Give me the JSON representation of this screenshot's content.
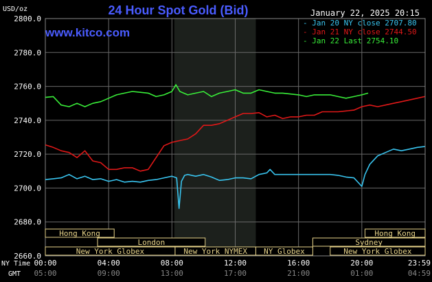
{
  "chart_data": {
    "type": "line",
    "title": "24 Hour Spot Gold (Bid)",
    "ylabel": "USD/oz",
    "source": "www.kitco.com",
    "timestamp": "January 22, 2025 20:15",
    "ylim": [
      2660,
      2800
    ],
    "y_ticks": [
      "2800.0",
      "2780.0",
      "2760.0",
      "2740.0",
      "2720.0",
      "2700.0",
      "2680.0",
      "2660.0"
    ],
    "x_ticks": [
      "00:00",
      "04:00",
      "08:00",
      "12:00",
      "16:00",
      "20:00",
      "23:59"
    ],
    "x_ticks_gmt": [
      "05:00",
      "09:00",
      "13:00",
      "17:00",
      "21:00",
      "01:00",
      "04:59"
    ],
    "x_label_ny": "NY Time",
    "x_label_gmt": "GMT",
    "legend_placement": "top-right",
    "grid": true,
    "highlight_session": {
      "start_hour": 8.15,
      "end_hour": 13.3
    },
    "series": [
      {
        "name": "Jan 20 NY close",
        "value_label": "2707.80",
        "color": "#39c5f0",
        "x": [
          0,
          0.5,
          1,
          1.5,
          2,
          2.5,
          3,
          3.5,
          4,
          4.5,
          5,
          5.5,
          6,
          6.5,
          7,
          7.5,
          8,
          8.3,
          8.45,
          8.6,
          8.8,
          9,
          9.5,
          10,
          10.5,
          11,
          11.5,
          12,
          12.5,
          13,
          13.5,
          14,
          14.2,
          14.5,
          15,
          16,
          17,
          18,
          18.5,
          19,
          19.5,
          20,
          20.1,
          20.2,
          20.5,
          21,
          21.5,
          22,
          22.5,
          23,
          23.5,
          23.98
        ],
        "y": [
          2705,
          2705.5,
          2706,
          2708,
          2705.5,
          2707,
          2705,
          2705.5,
          2704,
          2705,
          2703.5,
          2704,
          2703.5,
          2704.5,
          2705,
          2706,
          2707,
          2706,
          2688,
          2704,
          2707.5,
          2708,
          2707,
          2708,
          2706.5,
          2704.5,
          2705,
          2706,
          2706,
          2705.5,
          2708,
          2709,
          2711,
          2708,
          2708,
          2708,
          2708,
          2708,
          2707.5,
          2706.5,
          2706,
          2701,
          2704.5,
          2708,
          2714,
          2719,
          2721,
          2723,
          2722,
          2723,
          2724,
          2724.5
        ]
      },
      {
        "name": "Jan 21 NY close",
        "value_label": "2744.50",
        "color": "#e01818",
        "x": [
          0,
          0.5,
          1,
          1.5,
          2,
          2.5,
          3,
          3.5,
          4,
          4.5,
          5,
          5.5,
          6,
          6.5,
          7,
          7.5,
          8,
          8.5,
          9,
          9.5,
          10,
          10.5,
          11,
          11.5,
          12,
          12.5,
          13,
          13.5,
          14,
          14.5,
          15,
          15.5,
          16,
          16.5,
          17,
          17.5,
          18,
          18.5,
          19,
          19.5,
          20,
          20.5,
          21,
          21.5,
          22,
          22.5,
          23,
          23.5,
          23.98
        ],
        "y": [
          2725.5,
          2724,
          2722,
          2721,
          2718,
          2722,
          2716,
          2715,
          2711,
          2711,
          2712,
          2712,
          2710,
          2711,
          2718,
          2725,
          2727,
          2728,
          2729,
          2732,
          2737,
          2737,
          2738,
          2740,
          2742,
          2744,
          2744,
          2744.5,
          2742,
          2743,
          2741,
          2742,
          2742,
          2743,
          2743,
          2745,
          2745,
          2745,
          2745.5,
          2746,
          2748,
          2749,
          2748,
          2749,
          2750,
          2751,
          2752,
          2753,
          2754
        ]
      },
      {
        "name": "Jan 22 Last",
        "value_label": "2754.10",
        "color": "#39ee39",
        "x": [
          0,
          0.5,
          1,
          1.5,
          2,
          2.5,
          3,
          3.5,
          4,
          4.5,
          5,
          5.5,
          6,
          6.5,
          7,
          7.5,
          8,
          8.25,
          8.5,
          9,
          9.5,
          10,
          10.5,
          11,
          11.5,
          12,
          12.5,
          13,
          13.5,
          14,
          14.5,
          15,
          15.5,
          16,
          16.5,
          17,
          17.5,
          18,
          18.5,
          19,
          19.5,
          20,
          20.4
        ],
        "y": [
          2753.5,
          2754,
          2749,
          2748,
          2750,
          2748,
          2750,
          2751,
          2753,
          2755,
          2756,
          2757,
          2756.5,
          2756,
          2754,
          2755,
          2757,
          2761,
          2757,
          2755,
          2756,
          2757,
          2754,
          2756,
          2757,
          2758,
          2756,
          2756,
          2758,
          2757,
          2756,
          2756,
          2755.5,
          2755,
          2754,
          2755,
          2755,
          2755,
          2754,
          2753,
          2754,
          2755,
          2756
        ]
      }
    ],
    "sessions": [
      {
        "label": "Hong Kong",
        "row": 0,
        "start_hour": 0,
        "end_hour": 4.35
      },
      {
        "label": "Hong Kong",
        "row": 0,
        "start_hour": 20.2,
        "end_hour": 24
      },
      {
        "label": "London",
        "row": 1,
        "start_hour": 3.3,
        "end_hour": 10.1
      },
      {
        "label": "Sydney",
        "row": 1,
        "start_hour": 16.9,
        "end_hour": 24
      },
      {
        "label": "New York Globex",
        "row": 2,
        "start_hour": 0,
        "end_hour": 8.2
      },
      {
        "label": "New York NYMEX",
        "row": 2,
        "start_hour": 8.2,
        "end_hour": 13.3
      },
      {
        "label": "NY Globex",
        "row": 2,
        "start_hour": 13.3,
        "end_hour": 16.9
      },
      {
        "label": "New York Globex",
        "row": 2,
        "start_hour": 18,
        "end_hour": 24
      }
    ]
  }
}
